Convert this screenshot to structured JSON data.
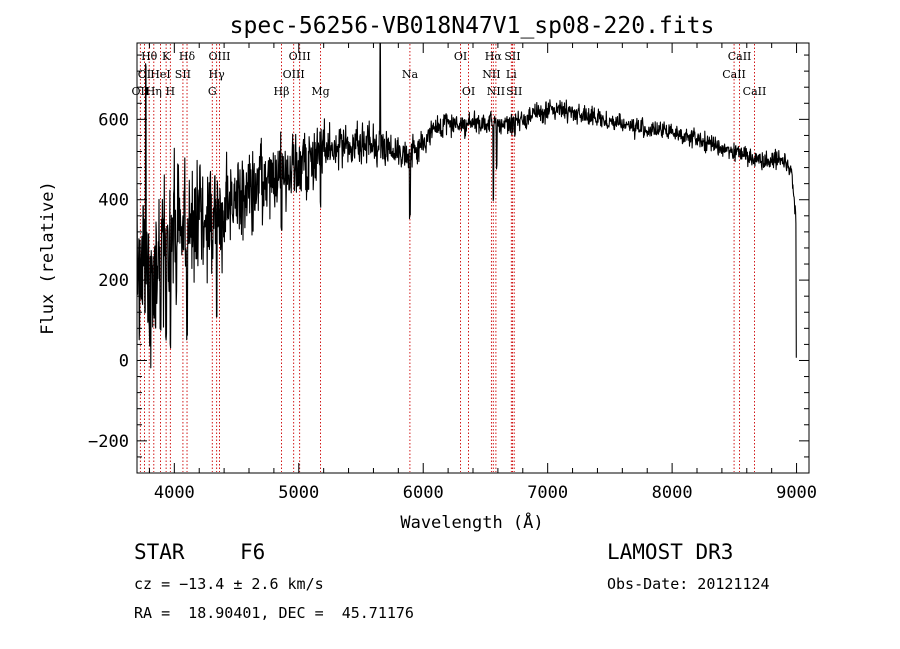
{
  "chart_data": {
    "type": "line",
    "title": "spec-56256-VB018N47V1_sp08-220.fits",
    "xlabel": "Wavelength (Å)",
    "ylabel": "Flux (relative)",
    "xlim": [
      3700,
      9100
    ],
    "ylim": [
      -280,
      790
    ],
    "xticks": [
      4000,
      5000,
      6000,
      7000,
      8000,
      9000
    ],
    "xtick_labels": [
      "4000",
      "5000",
      "6000",
      "7000",
      "8000",
      "9000"
    ],
    "yticks": [
      -200,
      0,
      200,
      400,
      600
    ],
    "ytick_labels": [
      "−200",
      "0",
      "200",
      "400",
      "600"
    ],
    "grid": false,
    "line_color": "#000000",
    "marker_color": "#cc0000",
    "continuum": [
      [
        3700,
        300
      ],
      [
        3760,
        180
      ],
      [
        3800,
        200
      ],
      [
        3850,
        250
      ],
      [
        3900,
        270
      ],
      [
        3950,
        300
      ],
      [
        4000,
        330
      ],
      [
        4100,
        330
      ],
      [
        4200,
        340
      ],
      [
        4300,
        360
      ],
      [
        4400,
        380
      ],
      [
        4500,
        400
      ],
      [
        4600,
        420
      ],
      [
        4700,
        430
      ],
      [
        4800,
        450
      ],
      [
        4900,
        470
      ],
      [
        5000,
        480
      ],
      [
        5100,
        490
      ],
      [
        5200,
        520
      ],
      [
        5300,
        530
      ],
      [
        5400,
        540
      ],
      [
        5500,
        535
      ],
      [
        5600,
        540
      ],
      [
        5700,
        530
      ],
      [
        5800,
        520
      ],
      [
        5900,
        515
      ],
      [
        6000,
        540
      ],
      [
        6100,
        580
      ],
      [
        6200,
        590
      ],
      [
        6300,
        590
      ],
      [
        6400,
        588
      ],
      [
        6500,
        585
      ],
      [
        6600,
        590
      ],
      [
        6700,
        585
      ],
      [
        6800,
        600
      ],
      [
        6900,
        615
      ],
      [
        7000,
        620
      ],
      [
        7100,
        625
      ],
      [
        7200,
        620
      ],
      [
        7300,
        610
      ],
      [
        7400,
        600
      ],
      [
        7500,
        595
      ],
      [
        7600,
        590
      ],
      [
        7700,
        580
      ],
      [
        7800,
        575
      ],
      [
        7900,
        570
      ],
      [
        8000,
        570
      ],
      [
        8100,
        560
      ],
      [
        8200,
        550
      ],
      [
        8300,
        540
      ],
      [
        8400,
        530
      ],
      [
        8500,
        520
      ],
      [
        8600,
        510
      ],
      [
        8700,
        500
      ],
      [
        8800,
        500
      ],
      [
        8900,
        500
      ],
      [
        8960,
        470
      ],
      [
        9000,
        340
      ]
    ],
    "features": [
      {
        "wave": 3750,
        "value": 380
      },
      {
        "wave": 3770,
        "value": 740
      },
      {
        "wave": 3798,
        "value": 90
      },
      {
        "wave": 3835,
        "value": 110
      },
      {
        "wave": 3889,
        "value": 80
      },
      {
        "wave": 3934,
        "value": 60
      },
      {
        "wave": 3968,
        "value": 40
      },
      {
        "wave": 4102,
        "value": 60
      },
      {
        "wave": 4305,
        "value": 300
      },
      {
        "wave": 4340,
        "value": 100
      },
      {
        "wave": 4861,
        "value": 330
      },
      {
        "wave": 5175,
        "value": 390
      },
      {
        "wave": 5655,
        "value": 785
      },
      {
        "wave": 5893,
        "value": 360
      },
      {
        "wave": 6563,
        "value": 400
      },
      {
        "wave": 6590,
        "value": 480
      },
      {
        "wave": 8999,
        "value": 0
      }
    ],
    "noise_amplitude": [
      [
        3700,
        200
      ],
      [
        4000,
        150
      ],
      [
        4500,
        100
      ],
      [
        5000,
        80
      ],
      [
        5500,
        40
      ],
      [
        6000,
        30
      ],
      [
        7000,
        22
      ],
      [
        8000,
        20
      ],
      [
        9000,
        20
      ]
    ],
    "spectral_lines": [
      {
        "label": "Hθ",
        "wave": 3798,
        "row": 0
      },
      {
        "label": "OI",
        "wave": 3760,
        "row": 1
      },
      {
        "label": "OII",
        "wave": 3727,
        "row": 2
      },
      {
        "label": "Hη",
        "wave": 3835,
        "row": 2
      },
      {
        "label": "HeI",
        "wave": 3889,
        "row": 1
      },
      {
        "label": "K",
        "wave": 3934,
        "row": 0
      },
      {
        "label": "SII",
        "wave": 4069,
        "row": 1
      },
      {
        "label": "H",
        "wave": 3968,
        "row": 2
      },
      {
        "label": "Hδ",
        "wave": 4102,
        "row": 0
      },
      {
        "label": "OIII",
        "wave": 4363,
        "row": 0
      },
      {
        "label": "Hγ",
        "wave": 4340,
        "row": 1
      },
      {
        "label": "G",
        "wave": 4305,
        "row": 2
      },
      {
        "label": "Hβ",
        "wave": 4861,
        "row": 2
      },
      {
        "label": "OIII",
        "wave": 5007,
        "row": 0
      },
      {
        "label": "OIII",
        "wave": 4959,
        "row": 1
      },
      {
        "label": "Mg",
        "wave": 5175,
        "row": 2
      },
      {
        "label": "Na",
        "wave": 5893,
        "row": 1
      },
      {
        "label": "OI",
        "wave": 6300,
        "row": 0
      },
      {
        "label": "OI",
        "wave": 6364,
        "row": 2
      },
      {
        "label": "Hα",
        "wave": 6563,
        "row": 0
      },
      {
        "label": "NII",
        "wave": 6548,
        "row": 1
      },
      {
        "label": "NII",
        "wave": 6584,
        "row": 2
      },
      {
        "label": "SII",
        "wave": 6717,
        "row": 0
      },
      {
        "label": "Li",
        "wave": 6708,
        "row": 1
      },
      {
        "label": "SII",
        "wave": 6731,
        "row": 2
      },
      {
        "label": "CaII",
        "wave": 8542,
        "row": 0
      },
      {
        "label": "CaII",
        "wave": 8498,
        "row": 1
      },
      {
        "label": "CaII",
        "wave": 8662,
        "row": 2
      }
    ]
  },
  "info": {
    "object_class": "STAR",
    "subclass": "F6",
    "survey": "LAMOST DR3",
    "redshift": "cz = −13.4 ± 2.6 km/s",
    "obs_date": "Obs-Date: 20121124",
    "coords": "RA =  18.90401, DEC =  45.71176"
  }
}
